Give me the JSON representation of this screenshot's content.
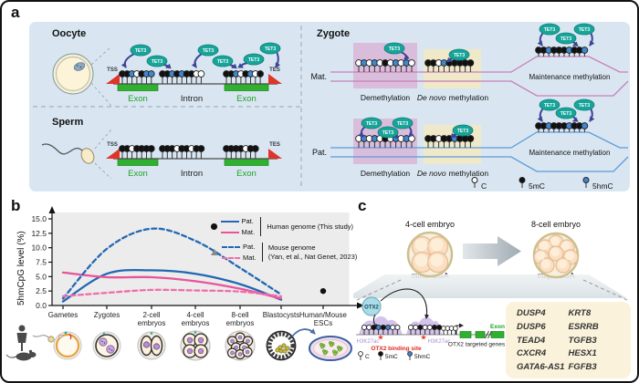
{
  "figure": {
    "panel_a": "a",
    "panel_b": "b",
    "panel_c": "c"
  },
  "colors": {
    "panel_bg": "#d9e6f2",
    "chart_bg": "#ececec",
    "c_fill": "#ffffff",
    "mc_fill": "#111111",
    "hmc_fill": "#3f87cf",
    "tet_fill": "#17a59a",
    "arrow_indigo": "#3d4496",
    "exon_green": "#2fb02f",
    "tss_red": "#e03428",
    "mat_pink": "#c77fb8",
    "pat_blue": "#5b9bd8",
    "demethylation_box": "#d9b5d7",
    "de_novo_box": "#f1e9c6",
    "human_pat_blue": "#2268b2",
    "human_mat_pink": "#e8549b",
    "mouse_mat_pink": "#f06eaa",
    "h3k27ac_purple": "#c9b4e6",
    "gene_box_bg": "#faf2da",
    "otx2_fill": "#abdce7"
  },
  "panel_a": {
    "label": "a",
    "oocyte": "Oocyte",
    "sperm": "Sperm",
    "zygote": "Zygote",
    "mat": "Mat.",
    "pat": "Pat.",
    "tss": "TSS",
    "tes": "TES",
    "exon": "Exon",
    "intron": "Intron",
    "tet3": "TET3",
    "demethylation": "Demethylation",
    "de_novo_italic": "De novo",
    "de_novo_rest": "methylation",
    "maintenance": "Maintenance methylation",
    "legend": {
      "c": "C",
      "mc": "5mC",
      "hmc": "5hmC"
    },
    "patterns": {
      "oocyte_exon1": "mmhcmhh",
      "oocyte_intron": "mmhmhmmcc",
      "oocyte_exon2": "mmhcmhcm",
      "sperm_exon1": "mmcmmmm",
      "sperm_intron": "mmmcmmcmm",
      "sperm_exon2": "mmmmcmm",
      "mat_demethylation": "chchcmchchc",
      "mat_de_novo": "mmchmmmmm",
      "mat_maintenance": "mmhmmmhmmh",
      "pat_demethylation": "chchcmchchc",
      "pat_de_novo": "mmcmmhmmm",
      "pat_maintenance": "mmhmmmhmmh"
    }
  },
  "panel_b": {
    "label": "b",
    "legend": {
      "pat": "Pat.",
      "mat": "Mat.",
      "human": "Human genome (This study)",
      "mouse_line1": "Mouse genome",
      "mouse_line2": "(Yan, et al., Nat Genet, 2023)"
    }
  },
  "chart_data": {
    "type": "line",
    "title": "",
    "xlabel": "",
    "ylabel": "5hmCpG level (%)",
    "ylim": [
      0,
      15
    ],
    "yticks": [
      0.0,
      2.5,
      5.0,
      7.5,
      10.0,
      12.5,
      15.0
    ],
    "grid": false,
    "legend_position": "top-right",
    "categories": [
      "Gametes",
      "Zygotes",
      "2-cell embryos",
      "4-cell embryos",
      "8-cell embryos",
      "Blastocysts",
      "Human/Mouse ESCs"
    ],
    "series": [
      {
        "name": "Pat. Human genome (This study)",
        "style": "solid",
        "color": "#2268b2",
        "values": [
          0.7,
          5.5,
          6.1,
          5.5,
          3.7,
          1.0,
          null
        ]
      },
      {
        "name": "Mat. Human genome (This study)",
        "style": "solid",
        "color": "#e8549b",
        "values": [
          5.7,
          4.9,
          4.9,
          4.2,
          2.9,
          1.2,
          null
        ]
      },
      {
        "name": "Pat. Mouse genome (Yan, et al., Nat Genet, 2023)",
        "style": "dashed",
        "color": "#2268b2",
        "values": [
          1.2,
          9.8,
          13.3,
          11.2,
          6.5,
          1.9,
          null
        ]
      },
      {
        "name": "Mat. Mouse genome (Yan, et al., Nat Genet, 2023)",
        "style": "dashed",
        "color": "#f06eaa",
        "values": [
          1.6,
          2.2,
          2.7,
          2.6,
          2.4,
          1.6,
          null
        ]
      }
    ],
    "points": [
      {
        "label": "Human/Mouse ESCs",
        "category_index": 6,
        "value": 2.5,
        "marker": "circle",
        "color": "#111111"
      }
    ]
  },
  "panel_c": {
    "label": "c",
    "four_cell_label": "4-cell embryo",
    "eight_cell_label": "8-cell embryo",
    "minor_zga": "minor ZGA",
    "major_zga": "major ZGA",
    "otx2": "OTX2",
    "h3k27ac": "H3K27ac",
    "binding_site": "OTX2 binding site",
    "targeted_genes": "OTX2 targeted genes",
    "exon": "Exon",
    "legend": {
      "c": "C",
      "mc": "5mC",
      "hmc": "5hmC"
    },
    "patterns": {
      "peak1": "ccmhmhcc",
      "peak2": "ccmccmm",
      "promoter": "cccc"
    },
    "genes_col1": [
      "DUSP4",
      "DUSP6",
      "TEAD4",
      "CXCR4",
      "GATA6-AS1"
    ],
    "genes_col2": [
      "KRT8",
      "ESRRB",
      "TGFB3",
      "HESX1",
      "FGFB3"
    ]
  }
}
